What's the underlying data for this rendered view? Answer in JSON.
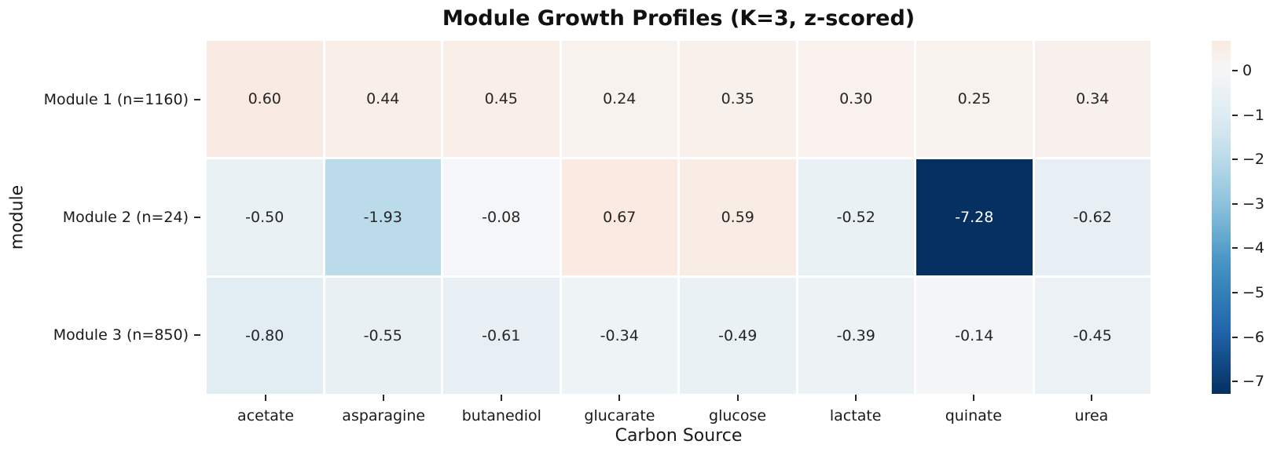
{
  "chart_data": {
    "type": "heatmap",
    "title": "Module Growth Profiles (K=3, z-scored)",
    "xlabel": "Carbon Source",
    "ylabel": "module",
    "columns": [
      "acetate",
      "asparagine",
      "butanediol",
      "glucarate",
      "glucose",
      "lactate",
      "quinate",
      "urea"
    ],
    "rows": [
      "Module 1 (n=1160)",
      "Module 2 (n=24)",
      "Module 3 (n=850)"
    ],
    "values": [
      [
        0.6,
        0.44,
        0.45,
        0.24,
        0.35,
        0.3,
        0.25,
        0.34
      ],
      [
        -0.5,
        -1.93,
        -0.08,
        0.67,
        0.59,
        -0.52,
        -7.28,
        -0.62
      ],
      [
        -0.8,
        -0.55,
        -0.61,
        -0.34,
        -0.49,
        -0.39,
        -0.14,
        -0.45
      ]
    ],
    "annotation_format": ".2f",
    "colormap": {
      "name": "RdBu_r",
      "center": 0,
      "vmin": -7.28,
      "vmax": 0.67,
      "anchors": [
        "#053061",
        "#2166ac",
        "#4393c3",
        "#92c5de",
        "#d1e5f0",
        "#f7f7f7",
        "#fddbc7",
        "#f4a582",
        "#d6604d",
        "#b2182b",
        "#67001f"
      ]
    },
    "colorbar": {
      "position": "right",
      "ticks": [
        {
          "label": "0",
          "value": 0
        },
        {
          "label": "−1",
          "value": -1
        },
        {
          "label": "−2",
          "value": -2
        },
        {
          "label": "−3",
          "value": -3
        },
        {
          "label": "−4",
          "value": -4
        },
        {
          "label": "−5",
          "value": -5
        },
        {
          "label": "−6",
          "value": -6
        },
        {
          "label": "−7",
          "value": -7
        }
      ]
    },
    "colors": {
      "cell_text_dark": "#262626",
      "cell_text_light": "#ffffff",
      "grid_line": "#ffffff",
      "background": "#ffffff"
    },
    "layout_hints": {
      "legend_position": "right-colorbar",
      "grid": "white-cell-separators",
      "annotations": "on"
    }
  }
}
